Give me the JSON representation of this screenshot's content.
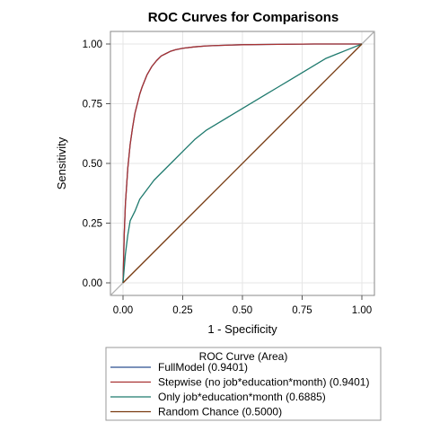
{
  "chart_data": {
    "type": "line",
    "title": "ROC Curves for Comparisons",
    "xlabel": "1 - Specificity",
    "ylabel": "Sensitivity",
    "xlim": [
      0,
      1
    ],
    "ylim": [
      0,
      1
    ],
    "xticks": [
      "0.00",
      "0.25",
      "0.50",
      "0.75",
      "1.00"
    ],
    "yticks": [
      "0.00",
      "0.25",
      "0.50",
      "0.75",
      "1.00"
    ],
    "grid": true,
    "legend": {
      "title": "ROC Curve (Area)",
      "placement": "bottom"
    },
    "series": [
      {
        "name": "FullModel  (0.9401)",
        "color": "#2b4f8f",
        "x": [
          0,
          0.005,
          0.01,
          0.02,
          0.03,
          0.04,
          0.05,
          0.06,
          0.07,
          0.08,
          0.1,
          0.12,
          0.14,
          0.16,
          0.18,
          0.2,
          0.22,
          0.25,
          0.3,
          0.35,
          0.4,
          0.5,
          0.6,
          0.7,
          0.8,
          0.9,
          1.0
        ],
        "y": [
          0,
          0.2,
          0.33,
          0.48,
          0.58,
          0.65,
          0.71,
          0.75,
          0.79,
          0.82,
          0.87,
          0.905,
          0.93,
          0.95,
          0.96,
          0.97,
          0.976,
          0.982,
          0.988,
          0.992,
          0.994,
          0.997,
          0.998,
          0.999,
          1.0,
          1.0,
          1.0
        ]
      },
      {
        "name": "Stepwise (no job*education*month)  (0.9401)",
        "color": "#a83232",
        "x": [
          0,
          0.005,
          0.01,
          0.02,
          0.03,
          0.04,
          0.05,
          0.06,
          0.07,
          0.08,
          0.1,
          0.12,
          0.14,
          0.16,
          0.18,
          0.2,
          0.22,
          0.25,
          0.3,
          0.35,
          0.4,
          0.5,
          0.6,
          0.7,
          0.8,
          0.9,
          1.0
        ],
        "y": [
          0,
          0.2,
          0.33,
          0.48,
          0.58,
          0.65,
          0.71,
          0.75,
          0.79,
          0.82,
          0.87,
          0.905,
          0.93,
          0.95,
          0.96,
          0.97,
          0.976,
          0.982,
          0.988,
          0.992,
          0.994,
          0.997,
          0.998,
          0.999,
          1.0,
          1.0,
          1.0
        ]
      },
      {
        "name": "Only job*education*month  (0.6885)",
        "color": "#1f7a6e",
        "x": [
          0,
          0.01,
          0.02,
          0.03,
          0.05,
          0.07,
          0.1,
          0.13,
          0.16,
          0.2,
          0.25,
          0.3,
          0.35,
          0.4,
          0.45,
          0.5,
          0.55,
          0.6,
          0.65,
          0.7,
          0.75,
          0.8,
          0.85,
          0.9,
          0.95,
          1.0
        ],
        "y": [
          0,
          0.12,
          0.2,
          0.26,
          0.3,
          0.35,
          0.39,
          0.43,
          0.46,
          0.5,
          0.55,
          0.6,
          0.64,
          0.67,
          0.7,
          0.73,
          0.76,
          0.79,
          0.82,
          0.85,
          0.88,
          0.91,
          0.94,
          0.96,
          0.98,
          1.0
        ]
      },
      {
        "name": "Random Chance  (0.5000)",
        "color": "#7a3b10",
        "x": [
          0,
          1
        ],
        "y": [
          0,
          1
        ]
      }
    ]
  }
}
